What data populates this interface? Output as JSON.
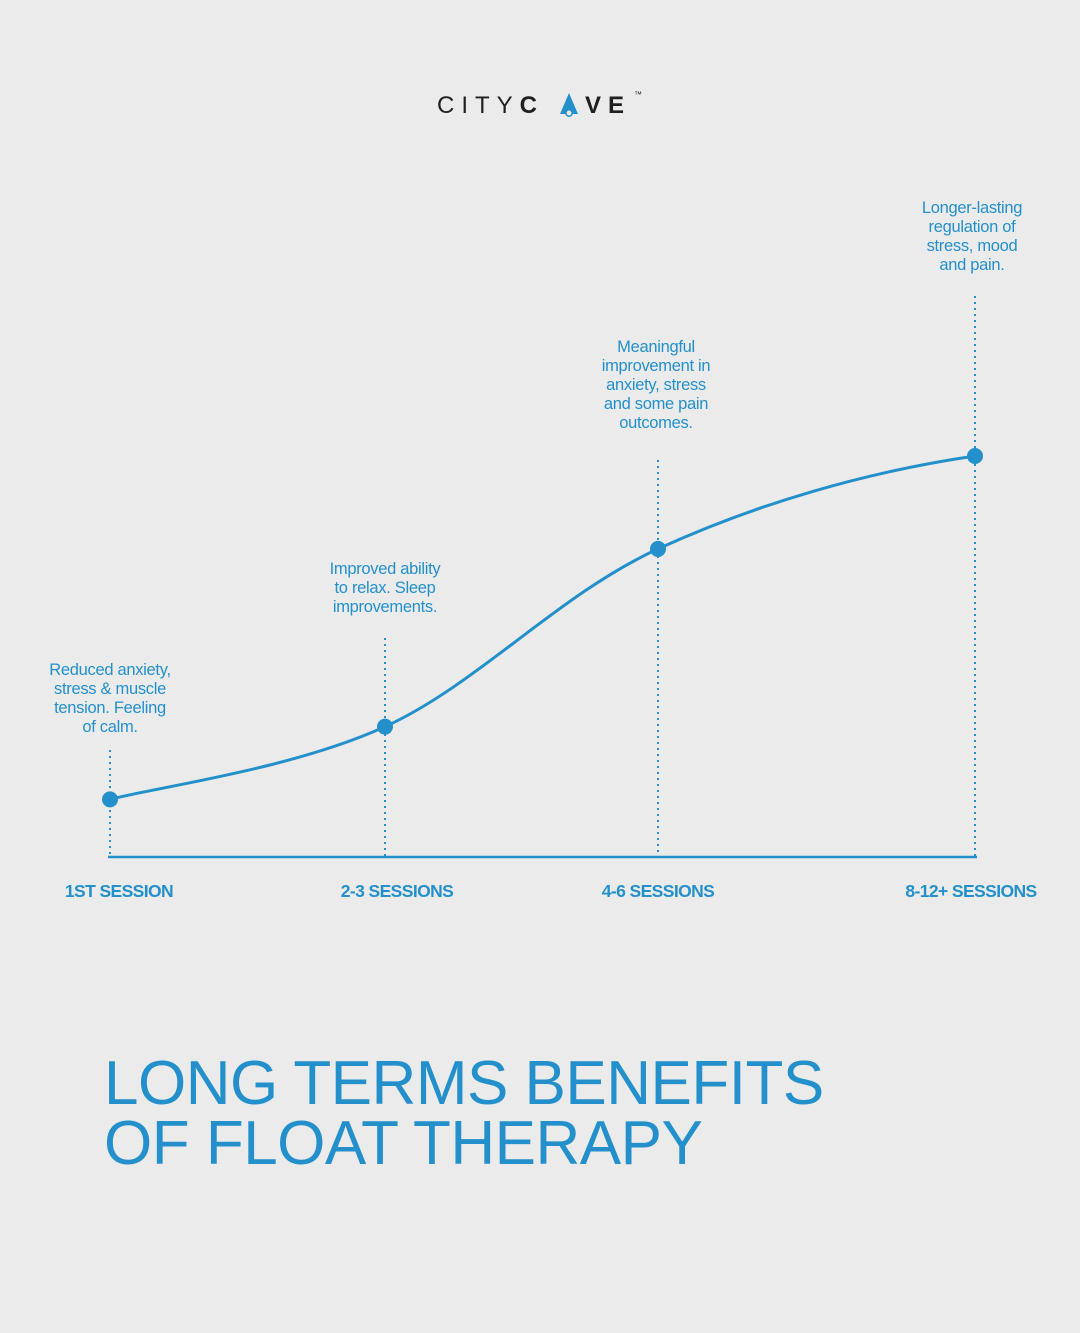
{
  "logo": {
    "text_light": "CITYC",
    "text_accent_letter": "A",
    "text_tail": "VE",
    "trademark": "™",
    "icon": "cave-tent-icon"
  },
  "colors": {
    "background": "#ebebeb",
    "accent": "#2390cc",
    "logo_text": "#1f1f1f"
  },
  "chart_data": {
    "type": "line",
    "categories": [
      "1ST SESSION",
      "2-3 SESSIONS",
      "4-6 SESSIONS",
      "8-12+ SESSIONS"
    ],
    "values": [
      0.15,
      0.33,
      0.77,
      1.0
    ],
    "ylim": [
      0,
      1
    ],
    "curve": "smooth",
    "markers": true,
    "annotations": [
      [
        "Reduced anxiety,",
        "stress & muscle",
        "tension. Feeling",
        "of calm."
      ],
      [
        "Improved ability",
        "to relax. Sleep",
        "improvements."
      ],
      [
        "Meaningful",
        "improvement in",
        "anxiety, stress",
        "and some pain",
        "outcomes."
      ],
      [
        "Longer-lasting",
        "regulation of",
        "stress, mood",
        "and pain."
      ]
    ],
    "grid": false,
    "title": ""
  },
  "headline": {
    "line1": "LONG TERMS BENEFITS",
    "line2": "OF FLOAT THERAPY"
  }
}
